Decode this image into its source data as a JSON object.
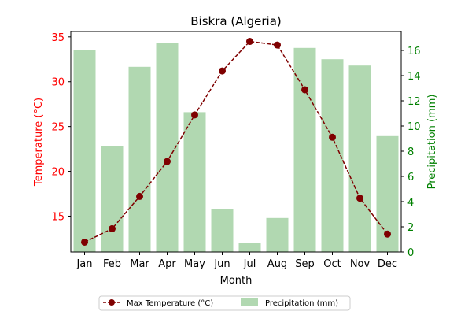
{
  "chart_data": {
    "type": "bar+line",
    "title": "Biskra (Algeria)",
    "xlabel": "Month",
    "ylabel_left": "Temperature (°C)",
    "ylabel_right": "Precipitation (mm)",
    "categories": [
      "Jan",
      "Feb",
      "Mar",
      "Apr",
      "May",
      "Jun",
      "Jul",
      "Aug",
      "Sep",
      "Oct",
      "Nov",
      "Dec"
    ],
    "y_left": {
      "lim": [
        11.0,
        35.6
      ],
      "ticks": [
        15,
        20,
        25,
        30,
        35
      ],
      "color": "#ff0000"
    },
    "y_right": {
      "lim": [
        0,
        17.5
      ],
      "ticks": [
        0,
        2,
        4,
        6,
        8,
        10,
        12,
        14,
        16
      ],
      "color": "#008000"
    },
    "series": [
      {
        "name": "Max Temperature (°C)",
        "type": "line",
        "axis": "left",
        "color": "#7f0000",
        "values": [
          12.1,
          13.6,
          17.2,
          21.1,
          26.3,
          31.2,
          34.5,
          34.1,
          29.1,
          23.8,
          17.0,
          13.0
        ]
      },
      {
        "name": "Precipitation (mm)",
        "type": "bar",
        "axis": "right",
        "color": "#b1d8b1",
        "values": [
          16.0,
          8.4,
          14.7,
          16.6,
          11.1,
          3.4,
          0.7,
          2.7,
          16.2,
          15.3,
          14.8,
          9.2
        ]
      }
    ],
    "grid": false,
    "legend_position": "bottom-center"
  }
}
